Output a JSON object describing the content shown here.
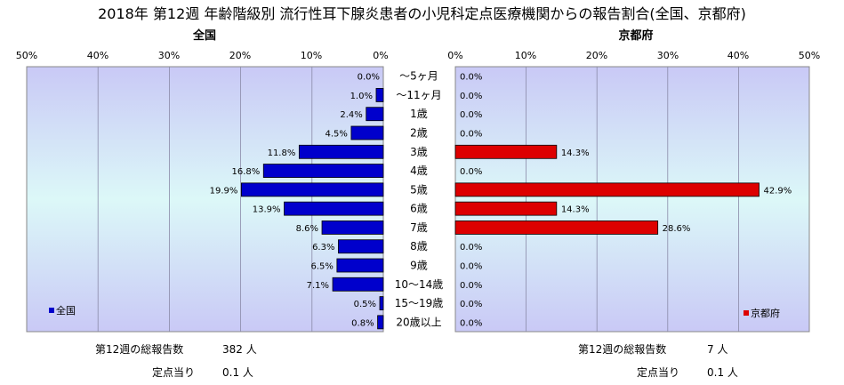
{
  "title": "2018年 第12週 年齢階級別 流行性耳下腺炎患者の小児科定点医療機関からの報告割合(全国、京都府)",
  "chart_data": {
    "type": "bar",
    "categories": [
      "～5ヶ月",
      "～11ヶ月",
      "1歳",
      "2歳",
      "3歳",
      "4歳",
      "5歳",
      "6歳",
      "7歳",
      "8歳",
      "9歳",
      "10～14歳",
      "15～19歳",
      "20歳以上"
    ],
    "axis_range": [
      0,
      50
    ],
    "axis_ticks": [
      "50%",
      "40%",
      "30%",
      "20%",
      "10%",
      "0%"
    ],
    "axis_ticks_right": [
      "0%",
      "10%",
      "20%",
      "30%",
      "40%",
      "50%"
    ],
    "grid": true,
    "series": [
      {
        "name": "全国",
        "panel_title": "全国",
        "color": "#0000cc",
        "values": [
          0.0,
          1.0,
          2.4,
          4.5,
          11.8,
          16.8,
          19.9,
          13.9,
          8.6,
          6.3,
          6.5,
          7.1,
          0.5,
          0.8
        ],
        "labels": [
          "0.0%",
          "1.0%",
          "2.4%",
          "4.5%",
          "11.8%",
          "16.8%",
          "19.9%",
          "13.9%",
          "8.6%",
          "6.3%",
          "6.5%",
          "7.1%",
          "0.5%",
          "0.8%"
        ],
        "legend_label": "全国",
        "legend_position": "bottom-left"
      },
      {
        "name": "京都府",
        "panel_title": "京都府",
        "color": "#dd0000",
        "values": [
          0.0,
          0.0,
          0.0,
          0.0,
          14.3,
          0.0,
          42.9,
          14.3,
          28.6,
          0.0,
          0.0,
          0.0,
          0.0,
          0.0
        ],
        "labels": [
          "0.0%",
          "0.0%",
          "0.0%",
          "0.0%",
          "14.3%",
          "0.0%",
          "42.9%",
          "14.3%",
          "28.6%",
          "0.0%",
          "0.0%",
          "0.0%",
          "0.0%",
          "0.0%"
        ],
        "legend_label": "京都府",
        "legend_position": "bottom-right"
      }
    ]
  },
  "footer": {
    "left": {
      "total_label": "第12週の総報告数",
      "total_value": "382 人",
      "per_label": "定点当り",
      "per_value": "0.1 人"
    },
    "right": {
      "total_label": "第12週の総報告数",
      "total_value": "7 人",
      "per_label": "定点当り",
      "per_value": "0.1 人"
    }
  }
}
